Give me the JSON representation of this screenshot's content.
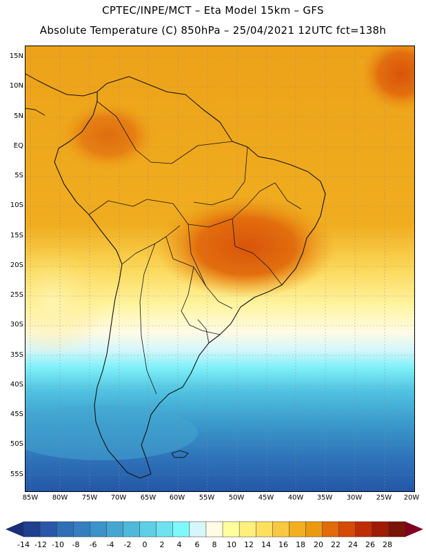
{
  "header": {
    "line1": "CPTEC/INPE/MCT –  Eta Model 15km – GFS",
    "line2": "Absolute Temperature (C) 850hPa – 25/04/2021 12UTC fct=138h"
  },
  "map": {
    "lat_labels": [
      "15N",
      "10N",
      "5N",
      "EQ",
      "5S",
      "10S",
      "15S",
      "20S",
      "25S",
      "30S",
      "35S",
      "40S",
      "45S",
      "50S",
      "55S"
    ],
    "lon_labels": [
      "85W",
      "80W",
      "75W",
      "70W",
      "65W",
      "60W",
      "55W",
      "50W",
      "45W",
      "40W",
      "35W",
      "30W",
      "25W",
      "20W"
    ]
  },
  "colorbar": {
    "labels": [
      "-14",
      "-12",
      "-10",
      "-8",
      "-6",
      "-4",
      "-2",
      "0",
      "2",
      "4",
      "6",
      "8",
      "10",
      "12",
      "14",
      "16",
      "18",
      "20",
      "22",
      "24",
      "26",
      "28"
    ],
    "colors": [
      "#1f3f8f",
      "#2a58a8",
      "#2f6fb6",
      "#357fc0",
      "#3b93c9",
      "#44a7d2",
      "#4fb9dc",
      "#5fcfe6",
      "#6de3ef",
      "#7ff8fb",
      "#d6f6fb",
      "#fffbe5",
      "#ffff9d",
      "#fff07d",
      "#fde05e",
      "#f8c840",
      "#f2b020",
      "#eb9a10",
      "#e06b08",
      "#d44a06",
      "#bf2d05",
      "#9e1b04",
      "#7a1406"
    ],
    "end_low": "#1a2e75",
    "end_high": "#800020"
  }
}
